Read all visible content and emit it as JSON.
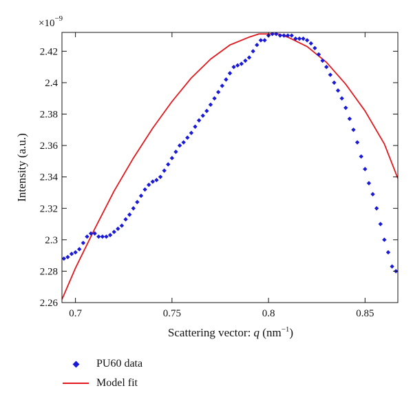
{
  "chart_data": {
    "type": "scatter",
    "xlabel_text": "Scattering vector: ",
    "xlabel_var": "q",
    "xlabel_unit_open": " (nm",
    "xlabel_unit_exp": "−1",
    "xlabel_unit_close": ")",
    "ylabel": "Intensity (a.u.)",
    "y_multiplier_base": "×10",
    "y_multiplier_exp": "−9",
    "xlim": [
      0.693,
      0.867
    ],
    "ylim": [
      2.26,
      2.432
    ],
    "x_ticks": [
      0.7,
      0.75,
      0.8,
      0.85
    ],
    "x_tick_labels": [
      "0.7",
      "0.75",
      "0.8",
      "0.85"
    ],
    "y_ticks": [
      2.26,
      2.28,
      2.3,
      2.32,
      2.34,
      2.36,
      2.38,
      2.4,
      2.42
    ],
    "y_tick_labels": [
      "2.26",
      "2.28",
      "2.3",
      "2.32",
      "2.34",
      "2.36",
      "2.38",
      "2.4",
      "2.42"
    ],
    "grid": false,
    "legend_position": "bottom-left, below plot",
    "series": [
      {
        "name": "PU60 data",
        "type": "scatter",
        "color": "#1a1ad6",
        "marker": "diamond",
        "x": [
          0.694,
          0.696,
          0.698,
          0.7,
          0.702,
          0.704,
          0.706,
          0.708,
          0.71,
          0.712,
          0.714,
          0.716,
          0.718,
          0.72,
          0.722,
          0.724,
          0.726,
          0.728,
          0.73,
          0.732,
          0.734,
          0.736,
          0.738,
          0.74,
          0.742,
          0.744,
          0.746,
          0.748,
          0.75,
          0.752,
          0.754,
          0.756,
          0.758,
          0.76,
          0.762,
          0.764,
          0.766,
          0.768,
          0.77,
          0.772,
          0.774,
          0.776,
          0.778,
          0.78,
          0.782,
          0.784,
          0.786,
          0.788,
          0.79,
          0.792,
          0.794,
          0.796,
          0.798,
          0.8,
          0.802,
          0.804,
          0.806,
          0.808,
          0.81,
          0.812,
          0.814,
          0.816,
          0.818,
          0.82,
          0.822,
          0.824,
          0.826,
          0.828,
          0.83,
          0.832,
          0.834,
          0.836,
          0.838,
          0.84,
          0.842,
          0.844,
          0.846,
          0.848,
          0.85,
          0.852,
          0.854,
          0.856,
          0.858,
          0.86,
          0.862,
          0.864,
          0.866
        ],
        "y": [
          2.288,
          2.289,
          2.291,
          2.292,
          2.294,
          2.298,
          2.302,
          2.304,
          2.304,
          2.302,
          2.302,
          2.302,
          2.303,
          2.305,
          2.307,
          2.309,
          2.313,
          2.316,
          2.32,
          2.324,
          2.328,
          2.332,
          2.335,
          2.337,
          2.338,
          2.34,
          2.344,
          2.348,
          2.352,
          2.356,
          2.36,
          2.362,
          2.365,
          2.368,
          2.372,
          2.376,
          2.379,
          2.382,
          2.386,
          2.39,
          2.394,
          2.398,
          2.402,
          2.406,
          2.41,
          2.411,
          2.412,
          2.414,
          2.416,
          2.42,
          2.424,
          2.427,
          2.427,
          2.43,
          2.431,
          2.431,
          2.43,
          2.43,
          2.43,
          2.43,
          2.428,
          2.428,
          2.428,
          2.427,
          2.425,
          2.422,
          2.418,
          2.414,
          2.41,
          2.405,
          2.4,
          2.395,
          2.39,
          2.384,
          2.377,
          2.37,
          2.362,
          2.353,
          2.345,
          2.336,
          2.329,
          2.32,
          2.31,
          2.3,
          2.292,
          2.283,
          2.28
        ]
      },
      {
        "name": "Model fit",
        "type": "line",
        "color": "#e3161c",
        "x": [
          0.693,
          0.7,
          0.71,
          0.72,
          0.73,
          0.74,
          0.75,
          0.76,
          0.77,
          0.78,
          0.79,
          0.795,
          0.8,
          0.805,
          0.81,
          0.82,
          0.83,
          0.84,
          0.85,
          0.86,
          0.867
        ],
        "y": [
          2.262,
          2.282,
          2.307,
          2.331,
          2.352,
          2.371,
          2.388,
          2.403,
          2.415,
          2.424,
          2.429,
          2.431,
          2.431,
          2.431,
          2.429,
          2.423,
          2.413,
          2.399,
          2.382,
          2.361,
          2.339
        ]
      }
    ]
  }
}
